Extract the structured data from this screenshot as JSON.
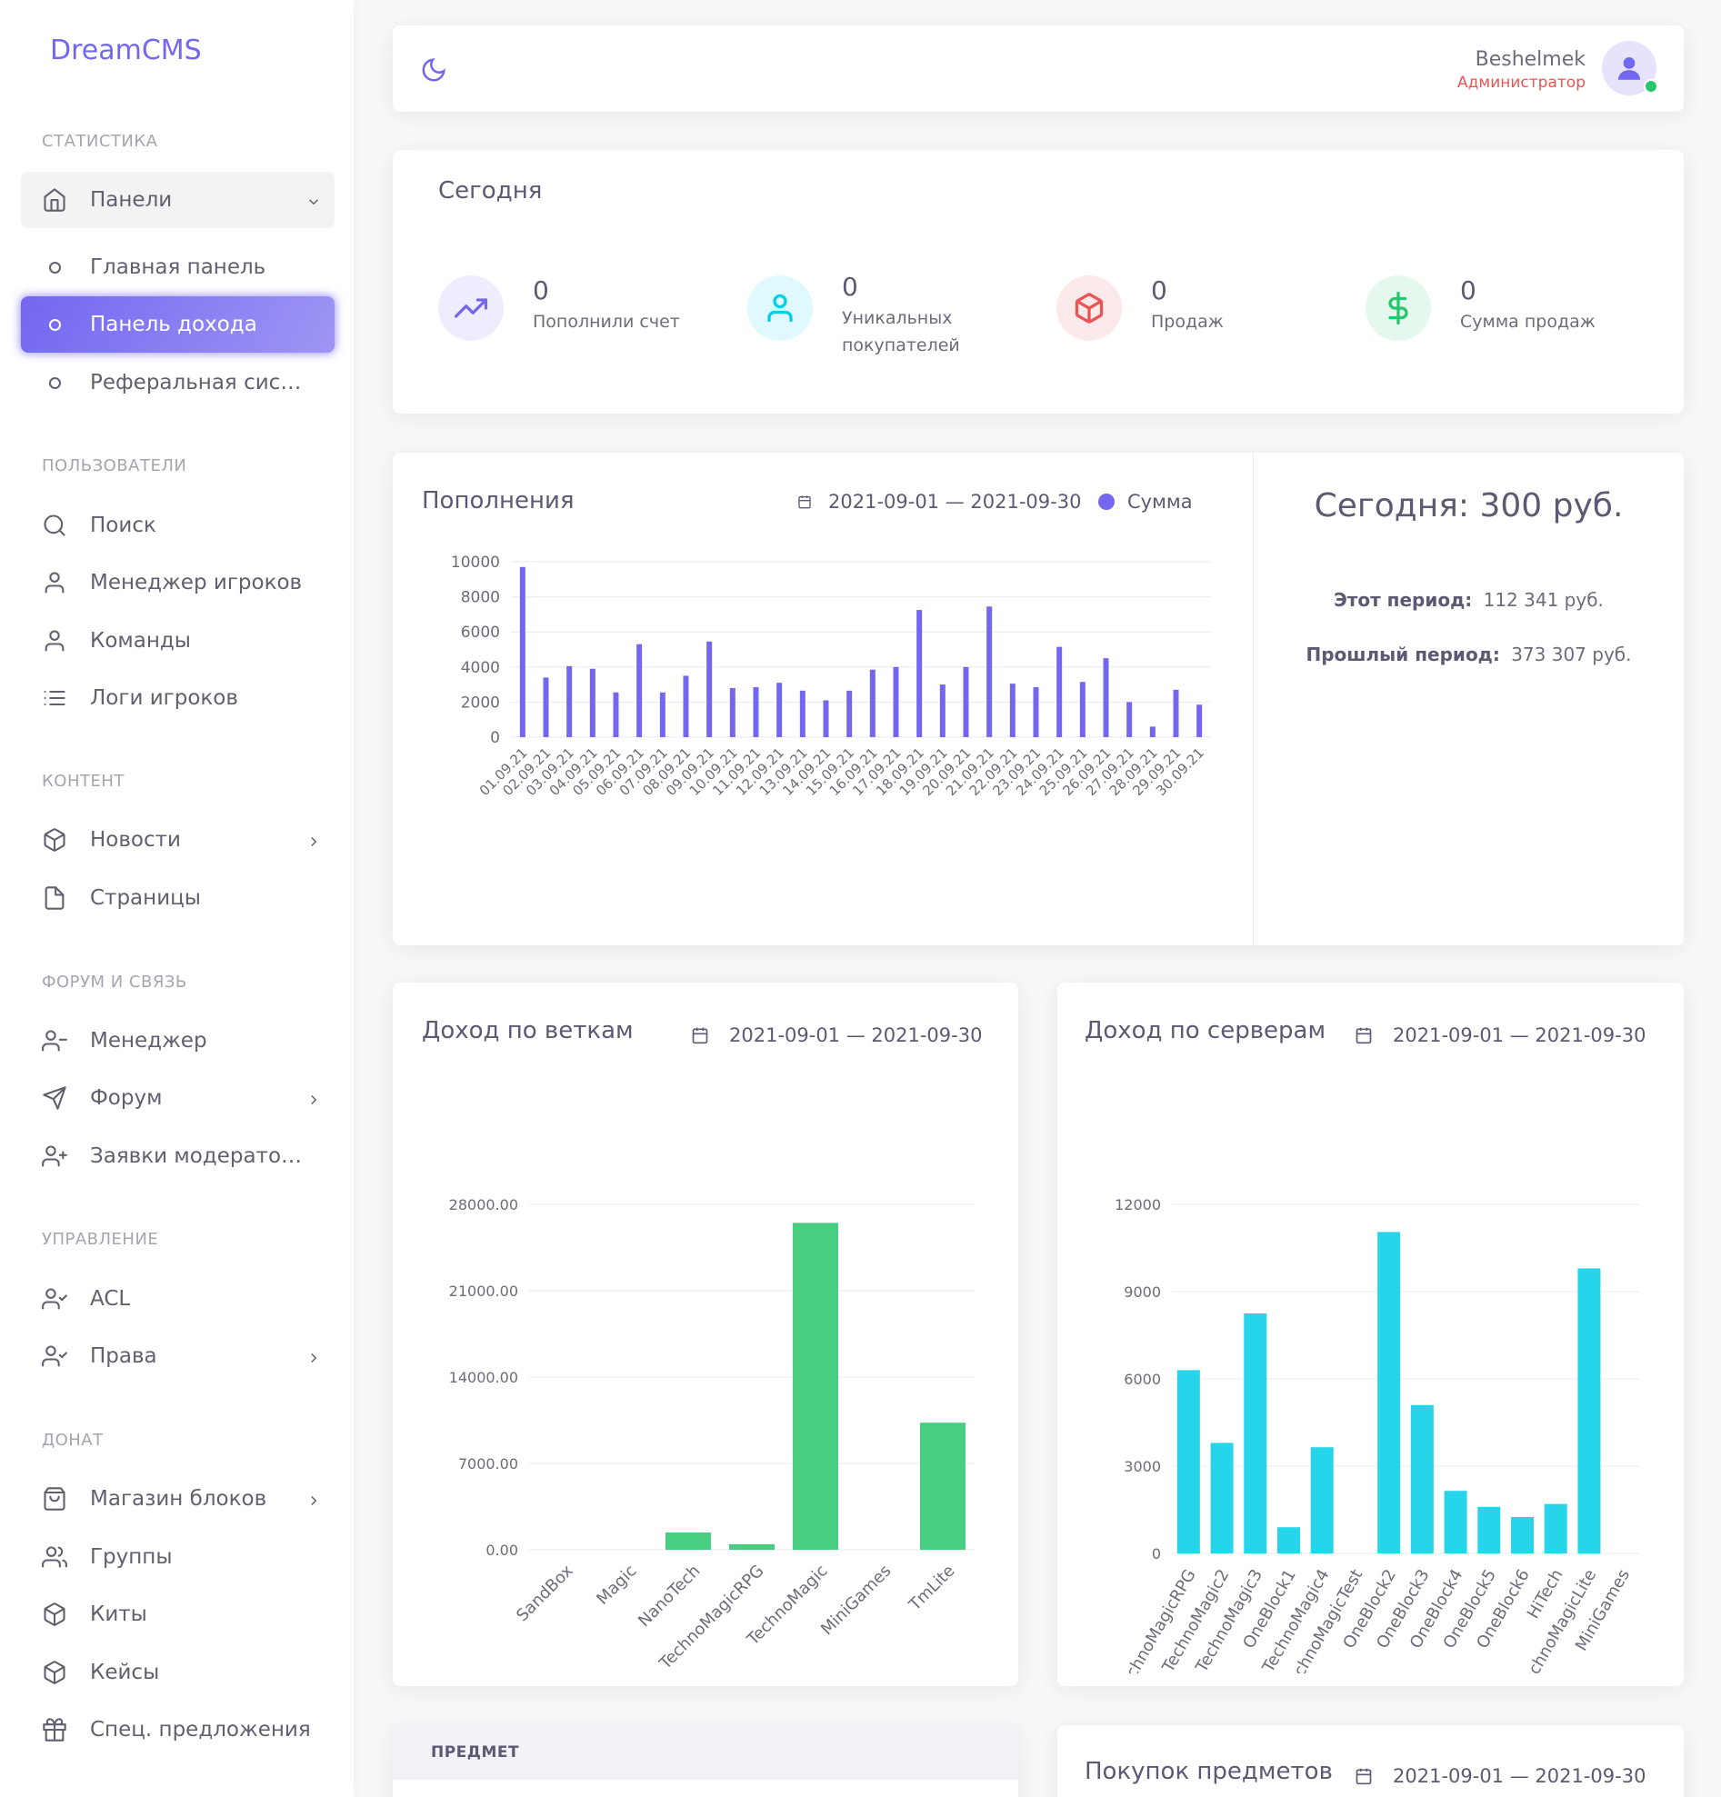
{
  "brand": "DreamCMS",
  "header": {
    "user_name": "Beshelmek",
    "user_role": "Администратор"
  },
  "sidebar": {
    "sections": {
      "stats": "СТАТИСТИКА",
      "users": "ПОЛЬЗОВАТЕЛИ",
      "content": "КОНТЕНТ",
      "forum": "ФОРУМ И СВЯЗЬ",
      "manage": "УПРАВЛЕНИЕ",
      "donate": "ДОНАТ"
    },
    "items": {
      "panels": "Панели",
      "main_panel": "Главная панель",
      "income_panel": "Панель дохода",
      "referral": "Реферальная система",
      "search": "Поиск",
      "player_manager": "Менеджер игроков",
      "teams": "Команды",
      "player_logs": "Логи игроков",
      "news": "Новости",
      "pages": "Страницы",
      "manager": "Менеджер",
      "forum": "Форум",
      "moderator_requests": "Заявки модераторов",
      "acl": "ACL",
      "rights": "Права",
      "block_shop": "Магазин блоков",
      "groups": "Группы",
      "kits": "Киты",
      "cases": "Кейсы",
      "special_offers": "Спец. предложения"
    }
  },
  "today": {
    "title": "Сегодня",
    "stats": [
      {
        "value": "0",
        "label": "Пополнили счет"
      },
      {
        "value": "0",
        "label": "Уникальных покупателей"
      },
      {
        "value": "0",
        "label": "Продаж"
      },
      {
        "value": "0",
        "label": "Сумма продаж"
      }
    ]
  },
  "deposits": {
    "title": "Пополнения",
    "date_range": "2021-09-01 — 2021-09-30",
    "legend": "Сумма",
    "today_total": "Сегодня: 300 руб.",
    "this_period_label": "Этот период:",
    "this_period_value": "112 341 руб.",
    "last_period_label": "Прошлый период:",
    "last_period_value": "373 307 руб."
  },
  "branches": {
    "title": "Доход по веткам",
    "date_range": "2021-09-01 — 2021-09-30"
  },
  "servers": {
    "title": "Доход по серверам",
    "date_range": "2021-09-01 — 2021-09-30"
  },
  "items_table": {
    "header": "ПРЕДМЕТ"
  },
  "purchases": {
    "title": "Покупок предметов",
    "date_range": "2021-09-01 — 2021-09-30"
  },
  "colors": {
    "accent": "#7367f0",
    "green": "#49cd80",
    "cyan": "#26d5e9",
    "danger": "#ea5455"
  },
  "chart_data": [
    {
      "type": "bar",
      "title": "Пополнения",
      "series": [
        {
          "name": "Сумма",
          "values": [
            9700,
            3400,
            4050,
            3900,
            2550,
            5300,
            2550,
            3500,
            5450,
            2800,
            2850,
            3100,
            2650,
            2100,
            2650,
            3850,
            4000,
            7250,
            3000,
            4000,
            7450,
            3050,
            2850,
            5150,
            3150,
            4500,
            2000,
            600,
            2700,
            1850
          ]
        }
      ],
      "categories": [
        "01.09.21",
        "02.09.21",
        "03.09.21",
        "04.09.21",
        "05.09.21",
        "06.09.21",
        "07.09.21",
        "08.09.21",
        "09.09.21",
        "10.09.21",
        "11.09.21",
        "12.09.21",
        "13.09.21",
        "14.09.21",
        "15.09.21",
        "16.09.21",
        "17.09.21",
        "18.09.21",
        "19.09.21",
        "20.09.21",
        "21.09.21",
        "22.09.21",
        "23.09.21",
        "24.09.21",
        "25.09.21",
        "26.09.21",
        "27.09.21",
        "28.09.21",
        "29.09.21",
        "30.09.21"
      ],
      "ylim": [
        0,
        10000
      ],
      "yticks": [
        "0",
        "2000",
        "4000",
        "6000",
        "8000",
        "10000"
      ]
    },
    {
      "type": "bar",
      "title": "Доход по веткам",
      "categories": [
        "SandBox",
        "Magic",
        "NanoTech",
        "TechnoMagicRPG",
        "TechnoMagic",
        "MiniGames",
        "TmLite"
      ],
      "values": [
        0,
        0,
        1400,
        450,
        26500,
        0,
        10300
      ],
      "ylim": [
        0,
        28000
      ],
      "yticks": [
        "0.00",
        "7000.00",
        "14000.00",
        "21000.00",
        "28000.00"
      ]
    },
    {
      "type": "bar",
      "title": "Доход по серверам",
      "categories": [
        "TechnoMagicRPG",
        "TechnoMagic2",
        "TechnoMagic3",
        "OneBlock1",
        "TechnoMagic4",
        "TechnoMagicTest",
        "OneBlock2",
        "OneBlock3",
        "OneBlock4",
        "OneBlock5",
        "OneBlock6",
        "HiTech",
        "TechnoMagicLite",
        "MiniGames"
      ],
      "values": [
        6300,
        3800,
        8250,
        900,
        3650,
        0,
        11050,
        5100,
        2150,
        1600,
        1250,
        1700,
        9800,
        0
      ],
      "ylim": [
        0,
        12000
      ],
      "yticks": [
        "0",
        "3000",
        "6000",
        "9000",
        "12000"
      ]
    }
  ]
}
